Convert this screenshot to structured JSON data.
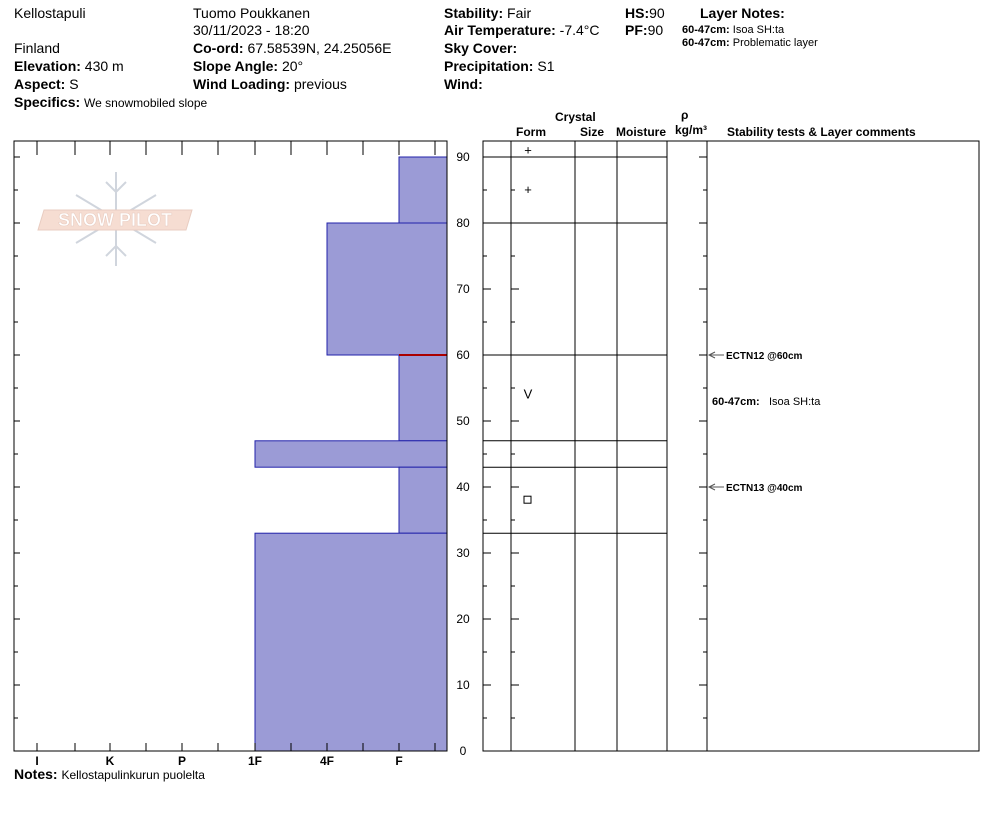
{
  "header": {
    "location": "Kellostapuli",
    "country": "Finland",
    "observer": "Tuomo Poukkanen",
    "datetime": "30/11/2023 - 18:20",
    "elevation": {
      "label": "Elevation:",
      "value": "430 m"
    },
    "aspect": {
      "label": "Aspect:",
      "value": "S"
    },
    "specifics": {
      "label": "Specifics:",
      "value": "We snowmobiled slope"
    },
    "coord": {
      "label": "Co-ord:",
      "value": "67.58539N, 24.25056E"
    },
    "slope_angle": {
      "label": "Slope Angle:",
      "value": "20°"
    },
    "wind_loading": {
      "label": "Wind Loading:",
      "value": "previous"
    },
    "stability": {
      "label": "Stability:",
      "value": "Fair"
    },
    "air_temp": {
      "label": "Air Temperature:",
      "value": "-7.4°C"
    },
    "sky_cover": {
      "label": "Sky Cover:",
      "value": ""
    },
    "precipitation": {
      "label": "Precipitation:",
      "value": "S1"
    },
    "wind": {
      "label": "Wind:",
      "value": ""
    },
    "hs": {
      "label": "HS:",
      "value": "90"
    },
    "pf": {
      "label": "PF:",
      "value": "90"
    },
    "layer_notes": {
      "title": "Layer Notes:",
      "items": [
        {
          "range": "60-47cm:",
          "text": "Isoa SH:ta"
        },
        {
          "range": "60-47cm:",
          "text": "Problematic layer"
        }
      ]
    }
  },
  "logo_text": "SNOW PILOT",
  "columns": {
    "crystal": "Crystal",
    "form": "Form",
    "size": "Size",
    "moisture": "Moisture",
    "rho": "ρ",
    "density_unit": "kg/m³",
    "comments": "Stability tests & Layer comments"
  },
  "notes": {
    "label": "Notes:",
    "value": "Kellostapulinkurun puolelta"
  },
  "chart_data": {
    "type": "bar",
    "title": "",
    "x_categories": [
      "I",
      "K",
      "P",
      "1F",
      "4F",
      "F"
    ],
    "ylim": [
      0,
      90
    ],
    "y_ticks": [
      0,
      10,
      20,
      30,
      40,
      50,
      60,
      70,
      80,
      90
    ],
    "hardness_layers": [
      {
        "top": 90,
        "bottom": 80,
        "hardness": "F"
      },
      {
        "top": 80,
        "bottom": 60,
        "hardness": "4F"
      },
      {
        "top": 60,
        "bottom": 47,
        "hardness": "F"
      },
      {
        "top": 47,
        "bottom": 43,
        "hardness": "1F"
      },
      {
        "top": 43,
        "bottom": 33,
        "hardness": "F"
      },
      {
        "top": 33,
        "bottom": 0,
        "hardness": "1F"
      }
    ],
    "problem_layer_line": 60,
    "layer_boundaries": [
      90,
      80,
      60,
      47,
      43,
      33
    ],
    "crystal_forms": [
      {
        "height": 91,
        "symbol": "+"
      },
      {
        "height": 85,
        "symbol": "+"
      },
      {
        "height": 54,
        "symbol": "V"
      },
      {
        "height": 38,
        "symbol": "□"
      }
    ],
    "stability_tests": [
      {
        "height": 60,
        "label": "ECTN12 @60cm"
      },
      {
        "height": 40,
        "label": "ECTN13 @40cm"
      }
    ],
    "layer_comments": [
      {
        "height": 53,
        "range": "60-47cm:",
        "text": "Isoa SH:ta"
      }
    ],
    "colors": {
      "fill": "#9b9bd6",
      "edge": "#2222aa",
      "problem": "#aa0000"
    }
  }
}
